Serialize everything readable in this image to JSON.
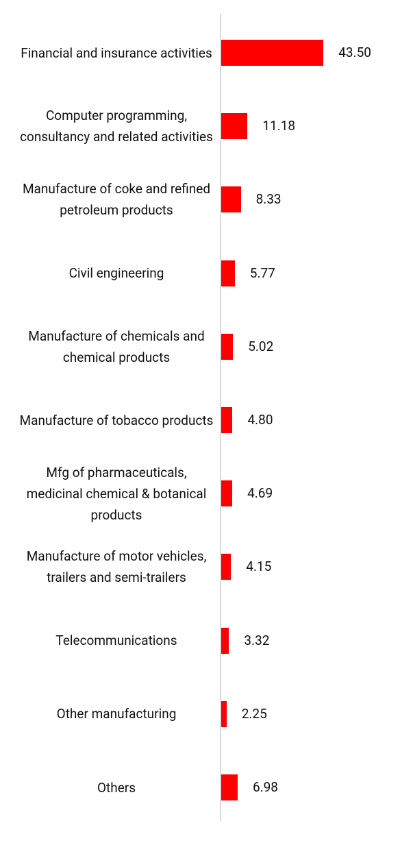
{
  "chart_data": {
    "type": "bar",
    "orientation": "horizontal",
    "color": "#ff0000",
    "categories": [
      "Financial and insurance activities",
      "Computer programming, consultancy and related activities",
      "Manufacture of coke and refined petroleum products",
      "Civil engineering",
      "Manufacture of chemicals and chemical products",
      "Manufacture of tobacco products",
      "Mfg of pharmaceuticals, medicinal chemical & botanical products",
      "Manufacture of motor vehicles, trailers and semi-trailers",
      "Telecommunications",
      "Other manufacturing",
      "Others"
    ],
    "values": [
      43.5,
      11.18,
      8.33,
      5.77,
      5.02,
      4.8,
      4.69,
      4.15,
      3.32,
      2.25,
      6.98
    ],
    "value_labels": [
      "43.50",
      "11.18",
      "8.33",
      "5.77",
      "5.02",
      "4.80",
      "4.69",
      "4.15",
      "3.32",
      "2.25",
      "6.98"
    ]
  }
}
